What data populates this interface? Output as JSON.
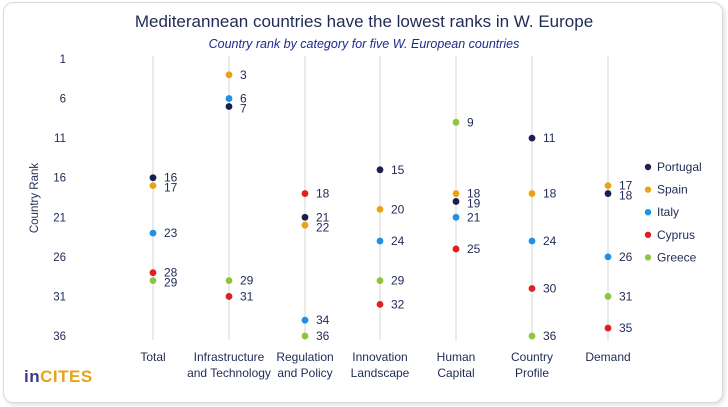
{
  "chart_data": {
    "type": "scatter",
    "title": "Mediterannean countries have the lowest ranks in W. Europe",
    "subtitle": "Country rank by category for five W. European countries",
    "ylabel": "Country Rank",
    "xlabel": "",
    "y_axis": {
      "min": 1,
      "max": 36,
      "inverted": true,
      "ticks": [
        1,
        6,
        11,
        16,
        21,
        26,
        31,
        36
      ]
    },
    "grid": false,
    "legend_position": "right",
    "categories": [
      [
        "Total"
      ],
      [
        "Infrastructure",
        "and Technology"
      ],
      [
        "Regulation",
        "and Policy"
      ],
      [
        "Innovation",
        "Landscape"
      ],
      [
        "Human",
        "Capital"
      ],
      [
        "Country",
        "Profile"
      ],
      [
        "Demand"
      ]
    ],
    "series": [
      {
        "name": "Portugal",
        "color": "#1b1f4d",
        "values": [
          16,
          7,
          21,
          15,
          19,
          11,
          18
        ]
      },
      {
        "name": "Spain",
        "color": "#e8a317",
        "values": [
          17,
          3,
          22,
          20,
          18,
          18,
          17
        ]
      },
      {
        "name": "Italy",
        "color": "#1e90e6",
        "values": [
          23,
          6,
          34,
          24,
          21,
          24,
          26
        ]
      },
      {
        "name": "Cyprus",
        "color": "#e02020",
        "values": [
          28,
          31,
          18,
          32,
          25,
          30,
          35
        ]
      },
      {
        "name": "Greece",
        "color": "#8cc63f",
        "values": [
          29,
          29,
          36,
          29,
          9,
          36,
          31
        ]
      }
    ]
  },
  "brand": {
    "part1": "in",
    "part2": "CITES"
  }
}
